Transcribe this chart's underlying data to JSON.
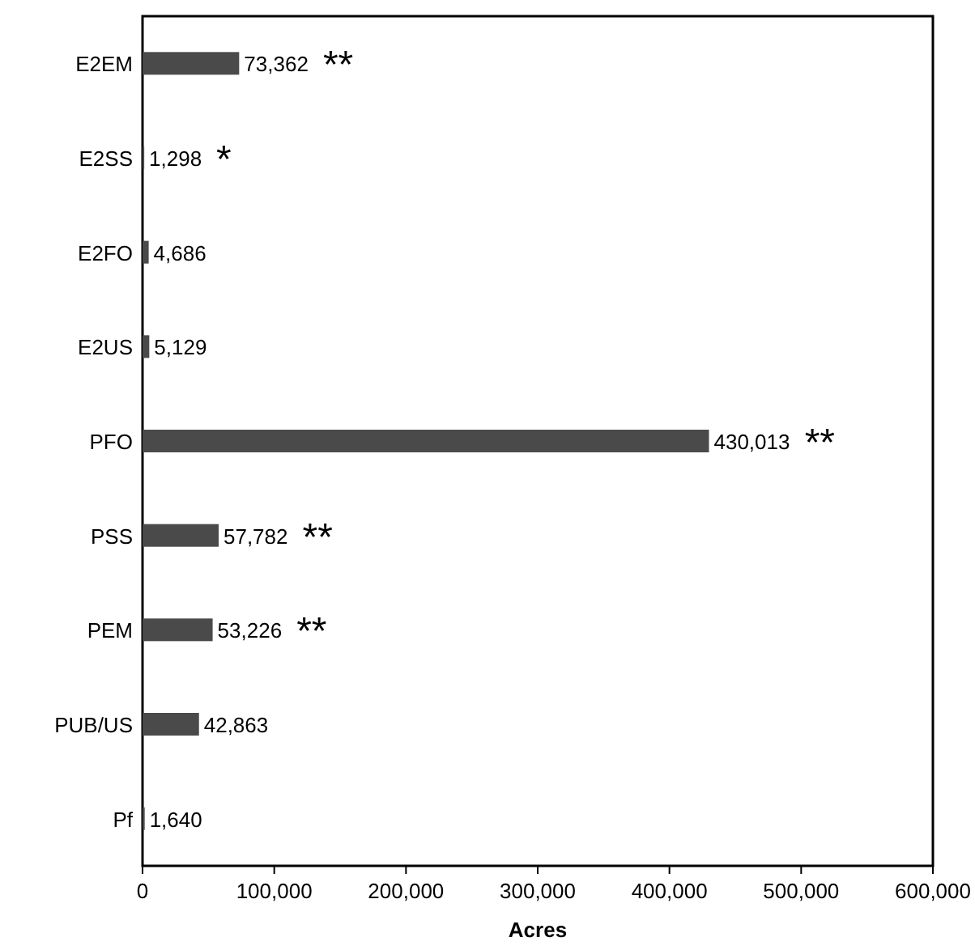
{
  "chart_data": {
    "type": "bar",
    "orientation": "horizontal",
    "xlabel": "Acres",
    "categories": [
      "E2EM",
      "E2SS",
      "E2FO",
      "E2US",
      "PFO",
      "PSS",
      "PEM",
      "PUB/US",
      "Pf"
    ],
    "values": [
      73362,
      1298,
      4686,
      5129,
      430013,
      57782,
      53226,
      42863,
      1640
    ],
    "value_labels": [
      "73,362",
      "1,298",
      "4,686",
      "5,129",
      "430,013",
      "57,782",
      "53,226",
      "42,863",
      "1,640"
    ],
    "color": "#4a4a4a",
    "xlim": [
      0,
      600000
    ],
    "xticks": [
      {
        "value": 0,
        "label": "0"
      },
      {
        "value": 100000,
        "label": "100,000"
      },
      {
        "value": 200000,
        "label": "200,000"
      },
      {
        "value": 300000,
        "label": "300,000"
      },
      {
        "value": 400000,
        "label": "400,000"
      },
      {
        "value": 500000,
        "label": "500,000"
      },
      {
        "value": 600000,
        "label": "600,000"
      }
    ],
    "annotations": [
      {
        "text": "**",
        "x": 73362,
        "y": "E2EM"
      },
      {
        "text": "*",
        "x": 1298,
        "y": "E2SS"
      },
      {
        "text": "**",
        "x": 430013,
        "y": "PFO"
      },
      {
        "text": "**",
        "x": 57782,
        "y": "PSS"
      },
      {
        "text": "**",
        "x": 53226,
        "y": "PEM"
      }
    ]
  }
}
